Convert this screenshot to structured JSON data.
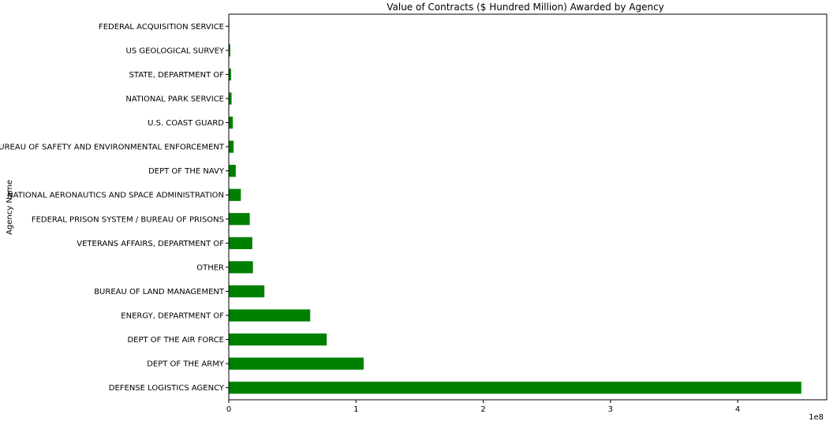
{
  "chart_data": {
    "type": "bar",
    "orientation": "horizontal",
    "title": "Value of Contracts ($ Hundred Million) Awarded by Agency",
    "xlabel": "",
    "ylabel": "Agency Name",
    "x_offset_label": "1e8",
    "xlim": [
      0,
      4.7
    ],
    "x_ticks": [
      0,
      1,
      2,
      3,
      4
    ],
    "x_tick_labels": [
      "0",
      "1",
      "2",
      "3",
      "4"
    ],
    "bar_color": "#008000",
    "grid": false,
    "legend": "none",
    "categories": [
      "DEFENSE LOGISTICS AGENCY",
      "DEPT OF THE ARMY",
      "DEPT OF THE AIR FORCE",
      "ENERGY, DEPARTMENT OF",
      "BUREAU OF LAND MANAGEMENT",
      "OTHER",
      "VETERANS AFFAIRS, DEPARTMENT OF",
      "FEDERAL PRISON SYSTEM / BUREAU OF PRISONS",
      "NATIONAL AERONAUTICS AND SPACE ADMINISTRATION",
      "DEPT OF THE NAVY",
      "BUREAU OF SAFETY AND ENVIRONMENTAL ENFORCEMENT",
      "U.S. COAST GUARD",
      "NATIONAL PARK SERVICE",
      "STATE, DEPARTMENT OF",
      "US GEOLOGICAL SURVEY",
      "FEDERAL ACQUISITION SERVICE"
    ],
    "values": [
      4.5,
      1.06,
      0.77,
      0.64,
      0.28,
      0.19,
      0.185,
      0.165,
      0.095,
      0.055,
      0.038,
      0.032,
      0.022,
      0.018,
      0.012,
      0.004
    ]
  }
}
